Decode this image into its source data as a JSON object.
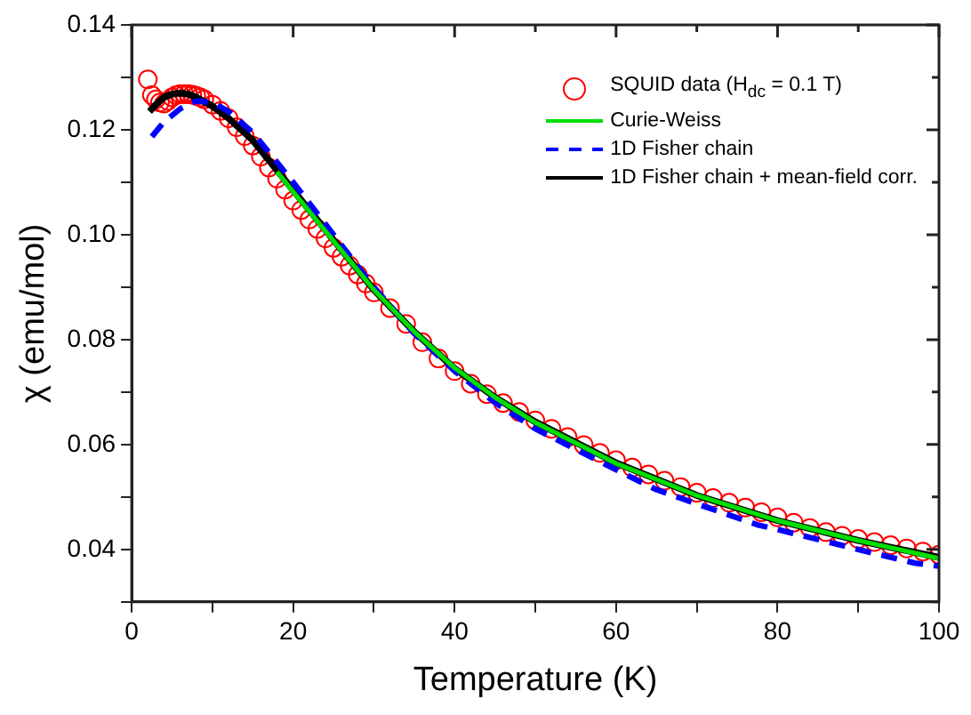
{
  "chart_data": {
    "type": "scatter",
    "xlabel": "Temperature (K)",
    "ylabel": "χ (emu/mol)",
    "xlim": [
      0,
      100
    ],
    "ylim": [
      0.03,
      0.14
    ],
    "xticks": [
      0,
      {
        "value": 10,
        "label": null
      },
      20,
      {
        "value": 30,
        "label": null
      },
      40,
      {
        "value": 50,
        "label": null
      },
      60,
      {
        "value": 70,
        "label": null
      },
      80,
      {
        "value": 90,
        "label": null
      },
      100
    ],
    "yticks": [
      {
        "value": 0.03,
        "label": null
      },
      {
        "value": 0.04,
        "label": "0.04"
      },
      {
        "value": 0.05,
        "label": null
      },
      {
        "value": 0.06,
        "label": "0.06"
      },
      {
        "value": 0.07,
        "label": null
      },
      {
        "value": 0.08,
        "label": "0.08"
      },
      {
        "value": 0.09,
        "label": null
      },
      {
        "value": 0.1,
        "label": "0.10"
      },
      {
        "value": 0.11,
        "label": null
      },
      {
        "value": 0.12,
        "label": "0.12"
      },
      {
        "value": 0.13,
        "label": null
      },
      {
        "value": 0.14,
        "label": "0.14"
      }
    ],
    "grid": false,
    "legend": "top right",
    "series": [
      {
        "name": "SQUID data (H$_{dc}$ = 0.1 T)",
        "type": "scatter",
        "marker": "circle",
        "color": "#ff0000",
        "x": [
          2,
          2.5,
          3,
          3.5,
          4,
          4.5,
          5,
          5.5,
          6,
          6.5,
          7,
          7.5,
          8,
          8.5,
          9,
          10,
          11,
          12,
          13,
          14,
          15,
          16,
          17,
          18,
          19,
          20,
          21,
          22,
          23,
          24,
          25,
          26,
          27,
          28,
          29,
          30,
          32,
          34,
          36,
          38,
          40,
          42,
          44,
          46,
          48,
          50,
          52,
          54,
          56,
          58,
          60,
          62,
          64,
          66,
          68,
          70,
          72,
          74,
          76,
          78,
          80,
          82,
          84,
          86,
          88,
          90,
          92,
          94,
          96,
          98,
          100
        ],
        "values": [
          0.1296,
          0.1266,
          0.1258,
          0.1252,
          0.125,
          0.1255,
          0.1262,
          0.1266,
          0.1268,
          0.1268,
          0.1268,
          0.1267,
          0.1265,
          0.1262,
          0.1258,
          0.1248,
          0.1236,
          0.1222,
          0.1205,
          0.1188,
          0.117,
          0.1149,
          0.1128,
          0.1107,
          0.1086,
          0.1065,
          0.1047,
          0.1029,
          0.1011,
          0.0993,
          0.0975,
          0.0958,
          0.0941,
          0.0924,
          0.0907,
          0.089,
          0.086,
          0.083,
          0.0795,
          0.0764,
          0.074,
          0.0716,
          0.0696,
          0.0679,
          0.0662,
          0.0646,
          0.063,
          0.0614,
          0.0599,
          0.0584,
          0.057,
          0.0556,
          0.0543,
          0.0531,
          0.0519,
          0.0508,
          0.0498,
          0.0489,
          0.048,
          0.0471,
          0.0461,
          0.0451,
          0.0441,
          0.0433,
          0.0426,
          0.042,
          0.0414,
          0.0408,
          0.0402,
          0.0396,
          0.039
        ]
      },
      {
        "name": "Curie-Weiss",
        "type": "line",
        "marker": "none",
        "line_style": "solid",
        "color": "#00dd00",
        "x": [
          18,
          20,
          25,
          30,
          35,
          40,
          45,
          50,
          60,
          70,
          80,
          90,
          100
        ],
        "values": [
          0.112,
          0.1082,
          0.0988,
          0.0895,
          0.0815,
          0.0746,
          0.069,
          0.0642,
          0.0564,
          0.0503,
          0.0455,
          0.0417,
          0.0383
        ]
      },
      {
        "name": "1D Fisher chain",
        "type": "line",
        "marker": "none",
        "line_style": "dashed",
        "color": "#0000ff",
        "x": [
          2.5,
          4,
          6,
          8,
          10,
          12,
          15,
          20,
          25,
          30,
          35,
          40,
          45,
          50,
          60,
          65,
          70,
          77.5,
          80,
          90,
          97,
          100
        ],
        "values": [
          0.1187,
          0.1215,
          0.124,
          0.1255,
          0.1252,
          0.1235,
          0.1195,
          0.11,
          0.1,
          0.09,
          0.0812,
          0.074,
          0.068,
          0.063,
          0.0552,
          0.0514,
          0.0487,
          0.0447,
          0.0438,
          0.04,
          0.0374,
          0.0368
        ]
      },
      {
        "name": "1D Fisher chain + mean-field corr.",
        "type": "line",
        "marker": "none",
        "line_style": "solid",
        "color": "#000000",
        "x": [
          2.2,
          3,
          4,
          5,
          6,
          7,
          8,
          10,
          12,
          15,
          20,
          25,
          30,
          35,
          40,
          45,
          50,
          60,
          70,
          80,
          90,
          100
        ],
        "values": [
          0.1235,
          0.1248,
          0.1262,
          0.1268,
          0.127,
          0.1268,
          0.1262,
          0.1245,
          0.1222,
          0.118,
          0.1085,
          0.099,
          0.0895,
          0.0815,
          0.0745,
          0.069,
          0.0643,
          0.0565,
          0.0503,
          0.0455,
          0.0417,
          0.0385
        ]
      }
    ]
  }
}
